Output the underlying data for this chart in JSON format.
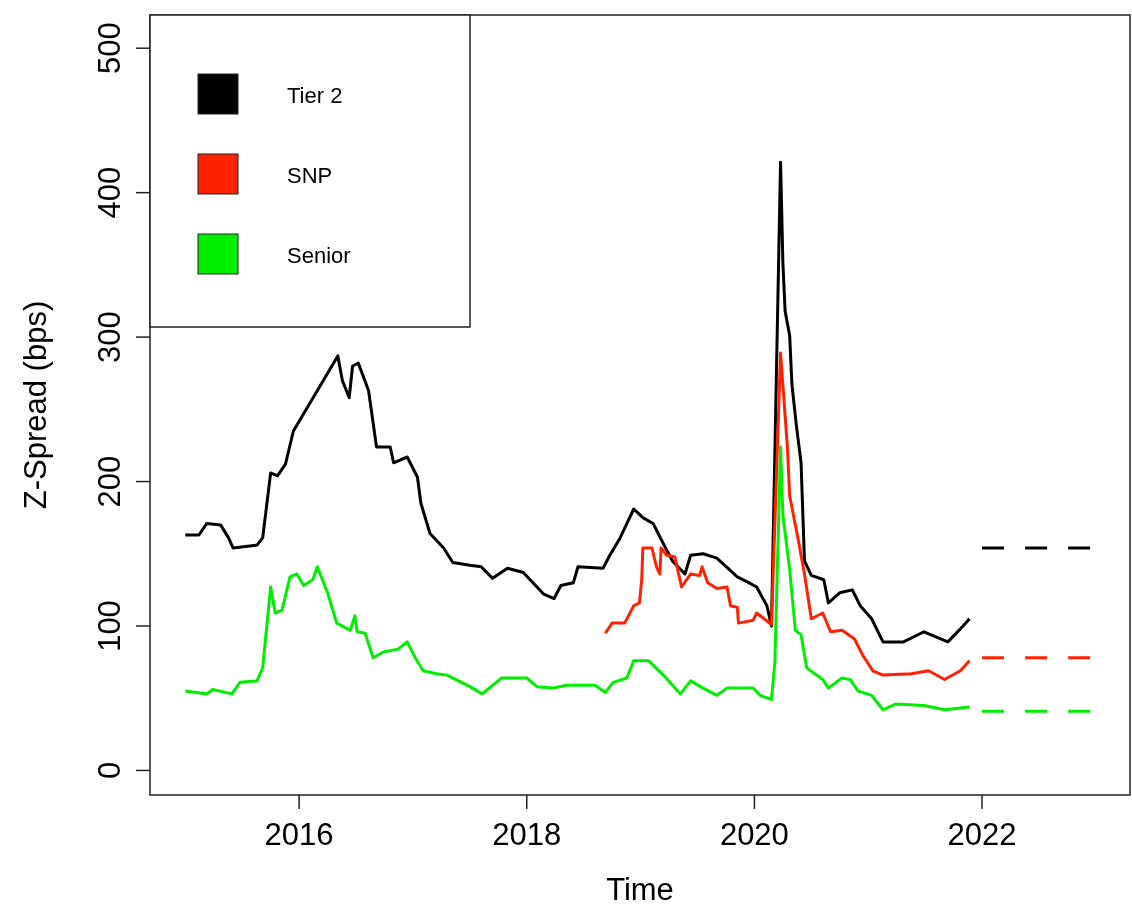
{
  "chart_data": {
    "type": "line",
    "xlabel": "Time",
    "ylabel": "Z-Spread (bps)",
    "xlim": [
      2014.69,
      2023.3
    ],
    "xticks": [
      2016,
      2018,
      2020,
      2022
    ],
    "ylim": [
      -17,
      523
    ],
    "yticks": [
      0,
      100,
      200,
      300,
      400,
      500
    ],
    "grid": false,
    "legend": "top left",
    "marker": "none",
    "line_style": "solid",
    "series": [
      {
        "name": "Tier 2",
        "color": "#000000",
        "x": [
          2015.0,
          2015.12,
          2015.19,
          2015.31,
          2015.38,
          2015.42,
          2015.63,
          2015.68,
          2015.75,
          2015.81,
          2015.88,
          2015.95,
          2016.34,
          2016.38,
          2016.44,
          2016.47,
          2016.52,
          2016.61,
          2016.68,
          2016.8,
          2016.83,
          2016.95,
          2017.04,
          2017.07,
          2017.15,
          2017.27,
          2017.35,
          2017.5,
          2017.6,
          2017.7,
          2017.83,
          2017.97,
          2018.15,
          2018.24,
          2018.3,
          2018.41,
          2018.45,
          2018.67,
          2018.73,
          2018.82,
          2018.94,
          2019.02,
          2019.11,
          2019.2,
          2019.28,
          2019.39,
          2019.44,
          2019.55,
          2019.67,
          2019.85,
          2019.95,
          2020.02,
          2020.11,
          2020.15,
          2020.23,
          2020.25,
          2020.27,
          2020.31,
          2020.33,
          2020.37,
          2020.41,
          2020.44,
          2020.5,
          2020.61,
          2020.65,
          2020.75,
          2020.86,
          2020.93,
          2021.03,
          2021.13,
          2021.31,
          2021.49,
          2021.7,
          2021.81,
          2021.89
        ],
        "values": [
          163,
          163,
          171,
          170,
          161,
          154,
          156,
          161,
          206,
          204,
          212,
          235,
          287,
          270,
          258,
          280,
          282,
          263,
          224,
          224,
          213,
          217,
          203,
          185,
          164,
          154,
          144,
          142,
          141,
          133,
          140,
          137,
          122,
          119,
          128,
          130,
          141,
          140,
          149,
          161,
          181,
          175,
          171,
          157,
          145,
          136,
          149,
          150,
          147,
          134,
          130,
          127,
          114,
          100,
          421,
          352,
          318,
          301,
          267,
          238,
          213,
          145,
          135,
          132,
          116,
          123,
          125,
          114,
          105,
          89,
          89,
          96,
          89,
          98,
          105
        ]
      },
      {
        "name": "SNP",
        "color": "#ff2200",
        "x": [
          2018.69,
          2018.75,
          2018.86,
          2018.94,
          2018.99,
          2019.01,
          2019.02,
          2019.1,
          2019.14,
          2019.17,
          2019.18,
          2019.23,
          2019.3,
          2019.36,
          2019.44,
          2019.52,
          2019.54,
          2019.59,
          2019.67,
          2019.76,
          2019.79,
          2019.85,
          2019.86,
          2019.99,
          2020.02,
          2020.15,
          2020.23,
          2020.25,
          2020.29,
          2020.31,
          2020.38,
          2020.44,
          2020.5,
          2020.6,
          2020.67,
          2020.77,
          2020.88,
          2020.95,
          2021.04,
          2021.13,
          2021.38,
          2021.53,
          2021.67,
          2021.81,
          2021.89
        ],
        "values": [
          95,
          102,
          102,
          114,
          116,
          132,
          154,
          154,
          141,
          136,
          154,
          149,
          148,
          127,
          136,
          135,
          141,
          130,
          126,
          127,
          114,
          113,
          102,
          104,
          109,
          101,
          289,
          267,
          224,
          190,
          162,
          136,
          105,
          109,
          96,
          97,
          91,
          80,
          69,
          66,
          67,
          69,
          63,
          69,
          76
        ]
      },
      {
        "name": "Senior",
        "color": "#00ee00",
        "x": [
          2015.0,
          2015.19,
          2015.24,
          2015.41,
          2015.48,
          2015.63,
          2015.68,
          2015.75,
          2015.79,
          2015.85,
          2015.92,
          2015.98,
          2016.04,
          2016.12,
          2016.16,
          2016.25,
          2016.33,
          2016.45,
          2016.49,
          2016.51,
          2016.58,
          2016.65,
          2016.74,
          2016.87,
          2016.95,
          2017.02,
          2017.09,
          2017.21,
          2017.3,
          2017.5,
          2017.61,
          2017.67,
          2017.78,
          2018.0,
          2018.09,
          2018.23,
          2018.35,
          2018.6,
          2018.69,
          2018.76,
          2018.88,
          2018.94,
          2019.07,
          2019.2,
          2019.35,
          2019.44,
          2019.55,
          2019.67,
          2019.76,
          2019.99,
          2020.05,
          2020.15,
          2020.18,
          2020.23,
          2020.25,
          2020.31,
          2020.36,
          2020.41,
          2020.46,
          2020.6,
          2020.65,
          2020.77,
          2020.84,
          2020.91,
          2021.03,
          2021.13,
          2021.24,
          2021.49,
          2021.67,
          2021.89
        ],
        "values": [
          55,
          53,
          56,
          53,
          61,
          62,
          71,
          127,
          109,
          111,
          134,
          136,
          128,
          132,
          141,
          123,
          102,
          97,
          107,
          96,
          95,
          78,
          82,
          84,
          89,
          78,
          69,
          67,
          66,
          58,
          53,
          57,
          64,
          64,
          58,
          57,
          59,
          59,
          54,
          61,
          64,
          76,
          76,
          66,
          53,
          62,
          57,
          52,
          57,
          57,
          52,
          49,
          75,
          224,
          177,
          139,
          97,
          94,
          71,
          63,
          57,
          64,
          63,
          55,
          52,
          42,
          46,
          45,
          42,
          44
        ]
      },
      {
        "color": "#000000",
        "line_style": "dashed",
        "x": [
          2022.0,
          2022.95
        ],
        "values": [
          154,
          154
        ]
      },
      {
        "color": "#ff2200",
        "line_style": "dashed",
        "x": [
          2022.0,
          2022.95
        ],
        "values": [
          78,
          78
        ]
      },
      {
        "color": "#00ee00",
        "line_style": "dashed",
        "x": [
          2022.0,
          2022.95
        ],
        "values": [
          41,
          41
        ]
      }
    ]
  }
}
